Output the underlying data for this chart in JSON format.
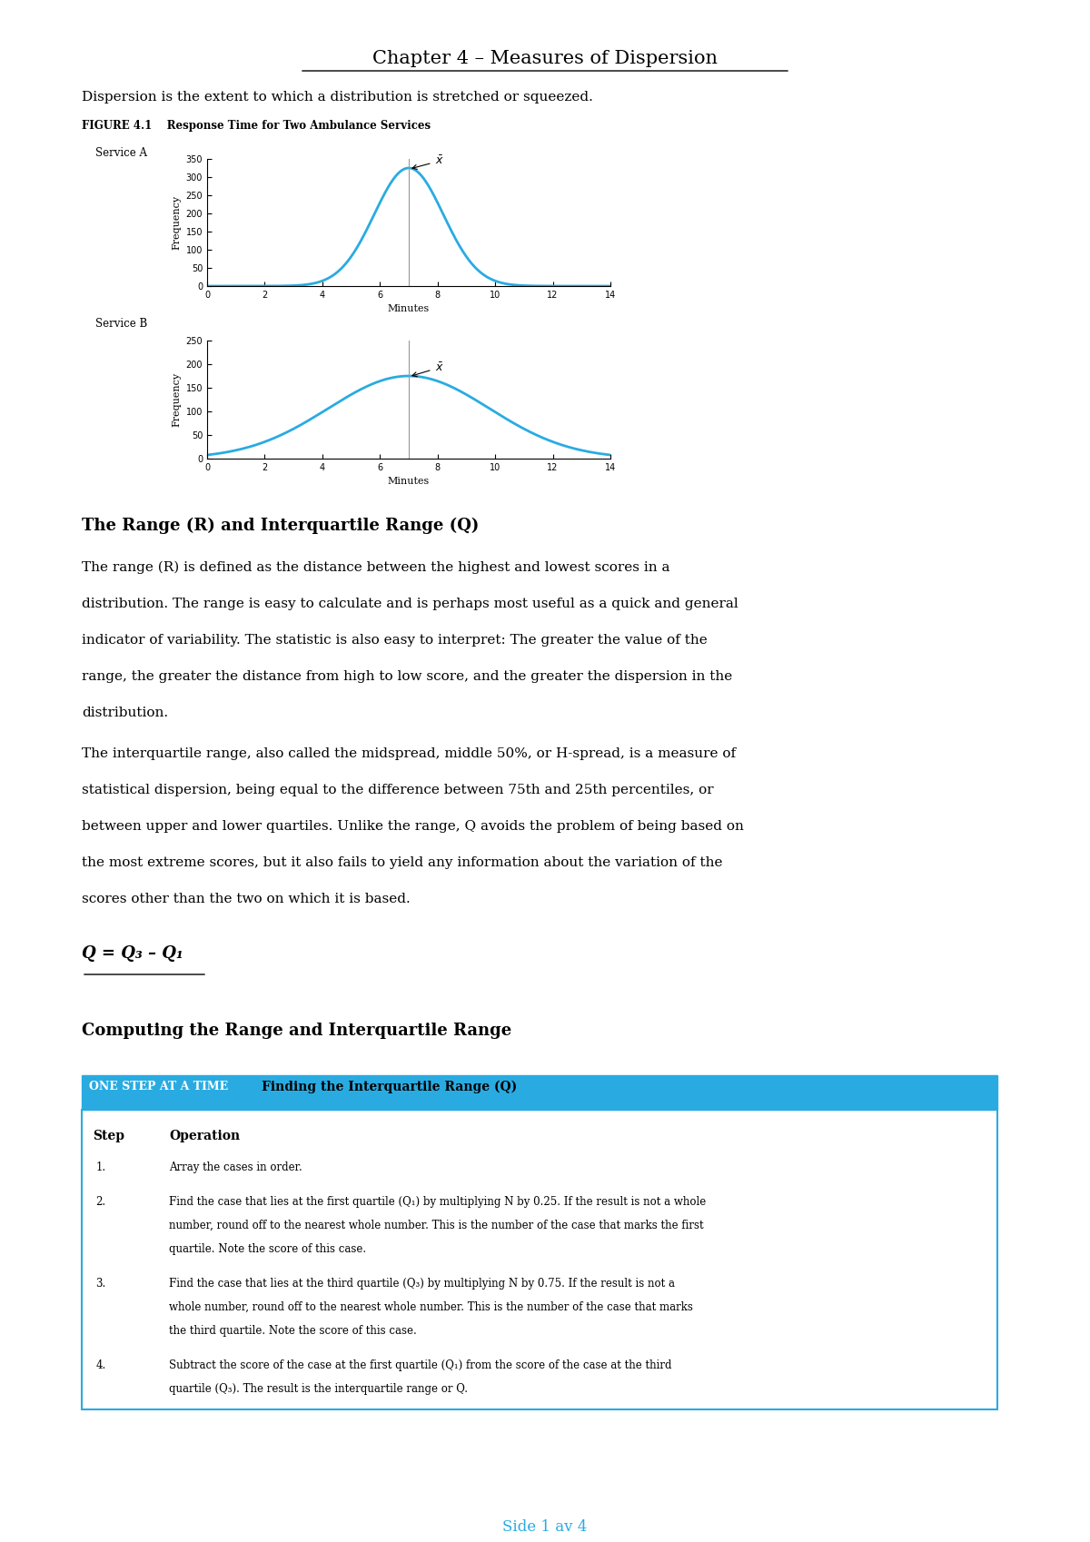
{
  "title": "Chapter 4 – Measures of Dispersion",
  "subtitle": "Dispersion is the extent to which a distribution is stretched or squeezed.",
  "figure_title": "FIGURE 4.1    Response Time for Two Ambulance Services",
  "service_a_label": "Service A",
  "service_b_label": "Service B",
  "xlabel": "Minutes",
  "ylabel": "Frequency",
  "curve_color": "#29ABE2",
  "line_color": "#999999",
  "xmin": 0,
  "xmax": 14,
  "xticks": [
    0,
    2,
    4,
    6,
    8,
    10,
    12,
    14
  ],
  "service_a_ylim": [
    0,
    350
  ],
  "service_a_yticks": [
    0,
    50,
    100,
    150,
    200,
    250,
    300,
    350
  ],
  "service_a_mean": 7,
  "service_a_peak": 325,
  "service_a_std": 1.2,
  "service_b_ylim": [
    0,
    250
  ],
  "service_b_yticks": [
    0,
    50,
    100,
    150,
    200,
    250
  ],
  "service_b_mean": 7,
  "service_b_peak": 175,
  "service_b_std": 2.8,
  "section_heading": "The Range (R) and Interquartile Range (Q)",
  "para1_lines": [
    "The range (R) is defined as the distance between the highest and lowest scores in a",
    "distribution. The range is easy to calculate and is perhaps most useful as a quick and general",
    "indicator of variability. The statistic is also easy to interpret: The greater the value of the",
    "range, the greater the distance from high to low score, and the greater the dispersion in the",
    "distribution."
  ],
  "para2_lines": [
    "The interquartile range, also called the midspread, middle 50%, or H-spread, is a measure of",
    "statistical dispersion, being equal to the difference between 75th and 25th percentiles, or",
    "between upper and lower quartiles. Unlike the range, Q avoids the problem of being based on",
    "the most extreme scores, but it also fails to yield any information about the variation of the",
    "scores other than the two on which it is based."
  ],
  "formula": "Q = Q₃ – Q₁",
  "section_heading2": "Computing the Range and Interquartile Range",
  "box_header_bg": "#29ABE2",
  "box_header_text_left": "ONE STEP AT A TIME",
  "box_header_text_right": "Finding the Interquartile Range (Q)",
  "box_step_header": "Step",
  "box_op_header": "Operation",
  "box_steps": [
    {
      "step": "1.",
      "op_lines": [
        "Array the cases in order."
      ]
    },
    {
      "step": "2.",
      "op_lines": [
        "Find the case that lies at the first quartile (Q₁) by multiplying N by 0.25. If the result is not a whole",
        "number, round off to the nearest whole number. This is the number of the case that marks the first",
        "quartile. Note the score of this case."
      ]
    },
    {
      "step": "3.",
      "op_lines": [
        "Find the case that lies at the third quartile (Q₃) by multiplying N by 0.75. If the result is not a",
        "whole number, round off to the nearest whole number. This is the number of the case that marks",
        "the third quartile. Note the score of this case."
      ]
    },
    {
      "step": "4.",
      "op_lines": [
        "Subtract the score of the case at the first quartile (Q₁) from the score of the case at the third",
        "quartile (Q₃). The result is the interquartile range or Q."
      ]
    }
  ],
  "footer": "Side 1 av 4",
  "bg_color": "#ffffff",
  "text_color": "#000000"
}
